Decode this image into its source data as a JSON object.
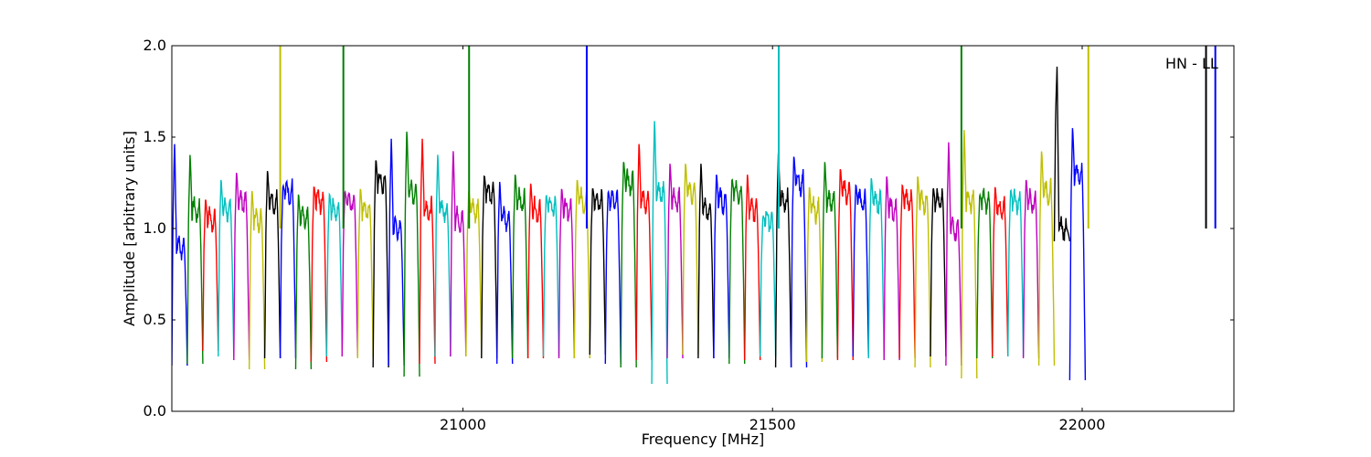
{
  "chart_data": {
    "type": "line",
    "xlabel": "Frequency [MHz]",
    "ylabel": "Amplitude [arbitrary units]",
    "xlim": [
      20530,
      22245
    ],
    "ylim": [
      0.0,
      2.0
    ],
    "xticks": [
      21000,
      21500,
      22000
    ],
    "xtick_labels": [
      "21000",
      "21500",
      "22000"
    ],
    "yticks": [
      0.0,
      0.5,
      1.0,
      1.5,
      2.0
    ],
    "ytick_labels": [
      "0.0",
      "0.5",
      "1.0",
      "1.5",
      "2.0"
    ],
    "grid": false,
    "annotation": "HN - LL",
    "color_cycle": [
      "#0000ff",
      "#008000",
      "#ff0000",
      "#00bfbf",
      "#bf00bf",
      "#bfbf00",
      "#000000"
    ],
    "bands": {
      "start": 20530,
      "width": 25,
      "series": [
        {
          "color": "#0000ff",
          "peak": 1.48,
          "min": 0.25,
          "flat": 0.9
        },
        {
          "color": "#008000",
          "peak": 1.42,
          "min": 0.26,
          "flat": 1.1
        },
        {
          "color": "#ff0000",
          "peak": 1.17,
          "min": 0.33,
          "flat": 1.05
        },
        {
          "color": "#00bfbf",
          "peak": 1.28,
          "min": 0.3,
          "flat": 1.1
        },
        {
          "color": "#bf00bf",
          "peak": 1.32,
          "min": 0.28,
          "flat": 1.15
        },
        {
          "color": "#bfbf00",
          "peak": 1.22,
          "min": 0.23,
          "flat": 1.05
        },
        {
          "color": "#000000",
          "peak": 1.33,
          "min": 0.29,
          "flat": 1.15
        },
        {
          "color": "#0000ff",
          "peak": 1.24,
          "min": 0.29,
          "flat": 1.2
        },
        {
          "color": "#008000",
          "peak": 1.2,
          "min": 0.23,
          "flat": 1.05
        },
        {
          "color": "#ff0000",
          "peak": 1.24,
          "min": 0.27,
          "flat": 1.15
        },
        {
          "color": "#00bfbf",
          "peak": 1.2,
          "min": 0.3,
          "flat": 1.1
        },
        {
          "color": "#bf00bf",
          "peak": 1.21,
          "min": 0.3,
          "flat": 1.15
        },
        {
          "color": "#bfbf00",
          "peak": 1.23,
          "min": 0.29,
          "flat": 1.1
        },
        {
          "color": "#000000",
          "peak": 1.39,
          "min": 0.24,
          "flat": 1.25
        },
        {
          "color": "#0000ff",
          "peak": 1.51,
          "min": 0.25,
          "flat": 1.0
        },
        {
          "color": "#008000",
          "peak": 1.55,
          "min": 0.19,
          "flat": 1.2
        },
        {
          "color": "#ff0000",
          "peak": 1.51,
          "min": 0.26,
          "flat": 1.1
        },
        {
          "color": "#00bfbf",
          "peak": 1.42,
          "min": 0.3,
          "flat": 1.1
        },
        {
          "color": "#bf00bf",
          "peak": 1.44,
          "min": 0.3,
          "flat": 1.05
        },
        {
          "color": "#bfbf00",
          "peak": 1.22,
          "min": 0.3,
          "flat": 1.1
        },
        {
          "color": "#000000",
          "peak": 1.3,
          "min": 0.29,
          "flat": 1.2
        },
        {
          "color": "#0000ff",
          "peak": 1.27,
          "min": 0.26,
          "flat": 1.05
        },
        {
          "color": "#008000",
          "peak": 1.31,
          "min": 0.29,
          "flat": 1.15
        },
        {
          "color": "#ff0000",
          "peak": 1.26,
          "min": 0.29,
          "flat": 1.1
        },
        {
          "color": "#00bfbf",
          "peak": 1.19,
          "min": 0.3,
          "flat": 1.12
        },
        {
          "color": "#bf00bf",
          "peak": 1.23,
          "min": 0.29,
          "flat": 1.1
        },
        {
          "color": "#bfbf00",
          "peak": 1.28,
          "min": 0.29,
          "flat": 1.15
        },
        {
          "color": "#000000",
          "peak": 1.23,
          "min": 0.31,
          "flat": 1.15
        },
        {
          "color": "#0000ff",
          "peak": 1.21,
          "min": 0.26,
          "flat": 1.15
        },
        {
          "color": "#008000",
          "peak": 1.38,
          "min": 0.24,
          "flat": 1.25
        },
        {
          "color": "#ff0000",
          "peak": 1.48,
          "min": 0.28,
          "flat": 1.15
        },
        {
          "color": "#00bfbf",
          "peak": 1.61,
          "min": 0.15,
          "flat": 1.2
        },
        {
          "color": "#bf00bf",
          "peak": 1.37,
          "min": 0.29,
          "flat": 1.15
        },
        {
          "color": "#bfbf00",
          "peak": 1.37,
          "min": 0.31,
          "flat": 1.2
        },
        {
          "color": "#000000",
          "peak": 1.37,
          "min": 0.29,
          "flat": 1.1
        },
        {
          "color": "#0000ff",
          "peak": 1.31,
          "min": 0.29,
          "flat": 1.15
        },
        {
          "color": "#008000",
          "peak": 1.28,
          "min": 0.26,
          "flat": 1.2
        },
        {
          "color": "#ff0000",
          "peak": 1.31,
          "min": 0.28,
          "flat": 1.1
        },
        {
          "color": "#00bfbf",
          "peak": 1.07,
          "min": 0.3,
          "flat": 1.05
        },
        {
          "color": "#000000",
          "peak": 1.43,
          "min": 0.24,
          "flat": 1.15
        },
        {
          "color": "#0000ff",
          "peak": 1.41,
          "min": 0.24,
          "flat": 1.25
        },
        {
          "color": "#bfbf00",
          "peak": 1.24,
          "min": 0.27,
          "flat": 1.1
        },
        {
          "color": "#008000",
          "peak": 1.38,
          "min": 0.29,
          "flat": 1.15
        },
        {
          "color": "#ff0000",
          "peak": 1.34,
          "min": 0.28,
          "flat": 1.2
        },
        {
          "color": "#0000ff",
          "peak": 1.25,
          "min": 0.3,
          "flat": 1.15
        },
        {
          "color": "#00bfbf",
          "peak": 1.29,
          "min": 0.29,
          "flat": 1.15
        },
        {
          "color": "#bf00bf",
          "peak": 1.3,
          "min": 0.28,
          "flat": 1.1
        },
        {
          "color": "#ff0000",
          "peak": 1.25,
          "min": 0.29,
          "flat": 1.15
        },
        {
          "color": "#bfbf00",
          "peak": 1.3,
          "min": 0.24,
          "flat": 1.15
        },
        {
          "color": "#000000",
          "peak": 1.23,
          "min": 0.3,
          "flat": 1.15
        },
        {
          "color": "#bf00bf",
          "peak": 1.49,
          "min": 0.25,
          "flat": 1.0
        },
        {
          "color": "#bfbf00",
          "peak": 1.56,
          "min": 0.18,
          "flat": 1.15
        },
        {
          "color": "#008000",
          "peak": 1.19,
          "min": 0.29,
          "flat": 1.15
        },
        {
          "color": "#ff0000",
          "peak": 1.24,
          "min": 0.3,
          "flat": 1.1
        },
        {
          "color": "#00bfbf",
          "peak": 1.22,
          "min": 0.3,
          "flat": 1.15
        },
        {
          "color": "#bf00bf",
          "peak": 1.28,
          "min": 0.29,
          "flat": 1.15
        },
        {
          "color": "#bfbf00",
          "peak": 1.44,
          "min": 0.25,
          "flat": 1.2
        },
        {
          "color": "#000000",
          "peak": 1.9,
          "min": 0.93,
          "flat": 1.0
        },
        {
          "color": "#0000ff",
          "peak": 1.57,
          "min": 0.17,
          "flat": 1.3
        }
      ]
    },
    "spikes": [
      {
        "x": 20705,
        "color": "#bfbf00"
      },
      {
        "x": 20807,
        "color": "#008000"
      },
      {
        "x": 21010,
        "color": "#008000"
      },
      {
        "x": 21200,
        "color": "#0000ff"
      },
      {
        "x": 21510,
        "color": "#00bfbf"
      },
      {
        "x": 21805,
        "color": "#008000"
      },
      {
        "x": 22010,
        "color": "#bfbf00"
      },
      {
        "x": 22200,
        "color": "#000000"
      },
      {
        "x": 22215,
        "color": "#0000ff"
      }
    ]
  }
}
